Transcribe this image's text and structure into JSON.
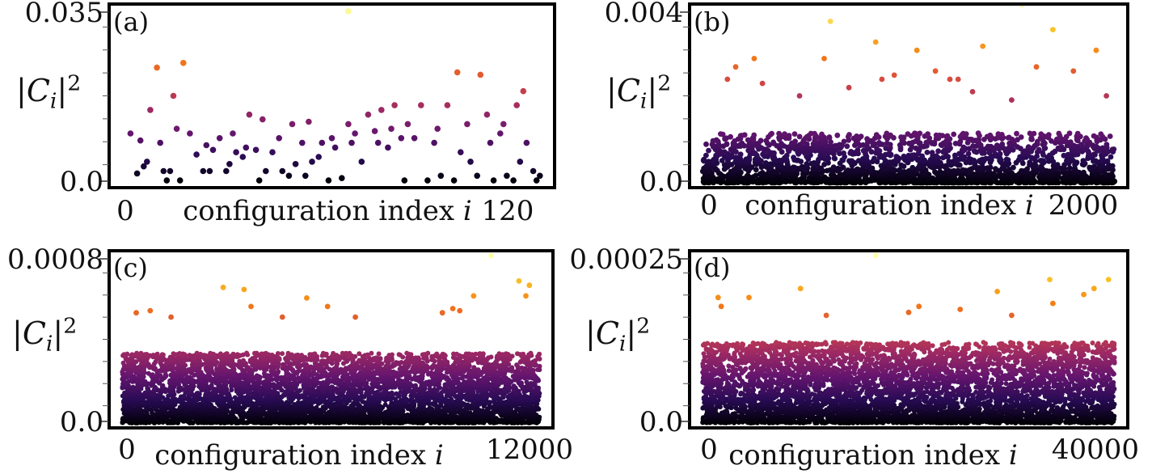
{
  "figure": {
    "colormap_low": "#000004",
    "colormap_high": "#fcffa4",
    "ylabel": "|C_i|^2",
    "xlabel": "configuration index i"
  },
  "chart_data": [
    {
      "type": "scatter",
      "panel_label": "(a)",
      "xlabel": "configuration index i",
      "ylabel": "|C_i|^2",
      "xlim": [
        -3,
        129
      ],
      "ylim": [
        0,
        0.037
      ],
      "x_ticks": [
        0,
        120
      ],
      "x_tick_labels": [
        "0",
        "120"
      ],
      "y_ticks": [
        0,
        0.035
      ],
      "y_tick_labels": [
        "0.0",
        "0.035"
      ],
      "color_max": 0.037,
      "x": [
        2,
        4,
        5,
        6,
        7,
        8,
        10,
        11,
        12,
        13,
        14,
        15,
        16,
        17,
        18,
        20,
        22,
        24,
        25,
        26,
        27,
        29,
        31,
        32,
        33,
        34,
        36,
        37,
        38,
        40,
        41,
        42,
        43,
        45,
        47,
        48,
        50,
        51,
        52,
        54,
        55,
        56,
        57,
        59,
        60,
        62,
        63,
        64,
        66,
        68,
        69,
        70,
        72,
        74,
        76,
        77,
        78,
        80,
        81,
        82,
        84,
        85,
        86,
        88,
        90,
        92,
        94,
        95,
        96,
        98,
        100,
        101,
        102,
        104,
        105,
        107,
        108,
        110,
        111,
        112,
        114,
        115,
        116,
        118,
        119,
        120,
        121,
        122,
        124,
        125,
        126,
        68
      ],
      "y": [
        0.0105,
        0.002,
        0.009,
        0.0035,
        0.0045,
        0.0155,
        0.0245,
        0.0085,
        0.0025,
        0.0005,
        0.0025,
        0.0185,
        0.0115,
        0.0005,
        0.0255,
        0.0105,
        0.006,
        0.0025,
        0.008,
        0.0025,
        0.007,
        0.0095,
        0.0025,
        0.004,
        0.0105,
        0.0065,
        0.0055,
        0.0075,
        0.0145,
        0.007,
        0.0005,
        0.0135,
        0.0025,
        0.0065,
        0.0095,
        0.0025,
        0.0015,
        0.0125,
        0.004,
        0.0085,
        0.0015,
        0.013,
        0.0045,
        0.0055,
        0.0085,
        0.0005,
        0.0095,
        0.0075,
        0.001,
        0.0125,
        0.0085,
        0.0105,
        0.0045,
        0.0145,
        0.011,
        0.0085,
        0.0155,
        0.0075,
        0.0115,
        0.0165,
        0.0095,
        0.0005,
        0.0125,
        0.0095,
        0.0165,
        0.0005,
        0.0085,
        0.0115,
        0.0015,
        0.0165,
        0.0005,
        0.0235,
        0.0065,
        0.0125,
        0.0045,
        0.0015,
        0.023,
        0.0145,
        0.0085,
        0.0005,
        0.0105,
        0.0125,
        0.0015,
        0.0005,
        0.0165,
        0.0045,
        0.0195,
        0.0085,
        0.0025,
        0.0005,
        0.0015,
        0.0365
      ]
    },
    {
      "type": "scatter",
      "panel_label": "(b)",
      "xlabel": "configuration index i",
      "ylabel": "|C_i|^2",
      "xlim": [
        -40,
        2040
      ],
      "ylim": [
        0,
        0.0042
      ],
      "x_ticks": [
        0,
        2000
      ],
      "x_tick_labels": [
        "0",
        "2000"
      ],
      "y_ticks": [
        0,
        0.004
      ],
      "y_tick_labels": [
        "0.0",
        "0.004"
      ],
      "color_max": 0.0043,
      "n_points": 2000,
      "y_typical_max": 0.0012,
      "x": [
        120,
        160,
        250,
        290,
        470,
        590,
        620,
        710,
        870,
        930,
        1040,
        1130,
        1200,
        1310,
        1360,
        1500,
        1550,
        1620,
        1700,
        1800,
        1910,
        1960,
        840,
        1240
      ],
      "y": [
        0.0025,
        0.0028,
        0.003,
        0.0024,
        0.0021,
        0.003,
        0.0039,
        0.0023,
        0.0025,
        0.0026,
        0.0032,
        0.0027,
        0.0025,
        0.0022,
        0.0033,
        0.002,
        0.0043,
        0.0028,
        0.0037,
        0.0027,
        0.0032,
        0.0021,
        0.0034,
        0.0025
      ]
    },
    {
      "type": "scatter",
      "panel_label": "(c)",
      "xlabel": "configuration index i",
      "ylabel": "|C_i|^2",
      "xlim": [
        -240,
        12240
      ],
      "ylim": [
        0,
        0.00079
      ],
      "x_ticks": [
        0,
        12000
      ],
      "x_tick_labels": [
        "0",
        "12000"
      ],
      "y_ticks": [
        0,
        0.0008
      ],
      "y_tick_labels": [
        "0.0",
        "0.0008"
      ],
      "color_max": 0.00079,
      "n_points": 12000,
      "y_typical_max": 0.00033,
      "x": [
        2900,
        3500,
        3700,
        5300,
        5900,
        10600,
        11400,
        11600,
        11700,
        400,
        800,
        1400,
        4600,
        6700,
        9200,
        9500,
        9700,
        10100
      ],
      "y": [
        0.00064,
        0.00063,
        0.00055,
        0.00059,
        0.00055,
        0.00079,
        0.00067,
        0.0006,
        0.00065,
        0.00052,
        0.00053,
        0.0005,
        0.0005,
        0.0005,
        0.00052,
        0.00054,
        0.00053,
        0.0006
      ]
    },
    {
      "type": "scatter",
      "panel_label": "(d)",
      "xlabel": "configuration index i",
      "ylabel": "|C_i|^2",
      "xlim": [
        -800,
        40800
      ],
      "ylim": [
        0,
        0.00028
      ],
      "x_ticks": [
        0,
        40000
      ],
      "x_tick_labels": [
        "0",
        "40000"
      ],
      "y_ticks": [
        0,
        0.00025
      ],
      "y_tick_labels": [
        "0.0",
        "0.00025"
      ],
      "color_max": 0.00028,
      "n_points": 40000,
      "y_typical_max": 0.000135,
      "x": [
        1500,
        4500,
        9500,
        16800,
        21000,
        28600,
        33700,
        37000,
        38000,
        39400,
        1800,
        12000,
        20000,
        25000,
        30000,
        34000
      ],
      "y": [
        0.00021,
        0.00021,
        0.000225,
        0.00028,
        0.000195,
        0.00022,
        0.00024,
        0.000215,
        0.000225,
        0.00024,
        0.000195,
        0.00018,
        0.000185,
        0.00019,
        0.00018,
        0.0002
      ]
    }
  ]
}
